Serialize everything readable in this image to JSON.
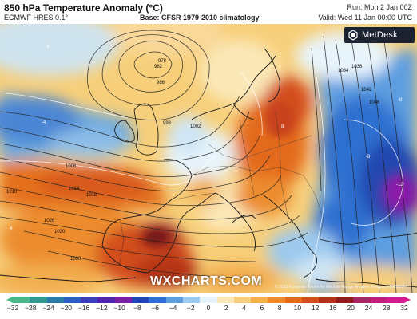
{
  "header": {
    "title": "850 hPa Temperature Anomaly (°C)",
    "model": "ECMWF HRES 0.1°",
    "base": "Base: CFSR 1979-2010 climatology",
    "run": "Run: Mon 2 Jan 00Z",
    "valid": "Valid: Wed 11 Jan 00:00 UTC"
  },
  "branding": {
    "metdesk": "MetDesk",
    "watermark": "WXCHARTS.COM",
    "credit": "© 2023 European Centre for Medium-Range Weather Forecasts (ECMWF)"
  },
  "isobar_labels": [
    "978",
    "982",
    "986",
    "998",
    "1002",
    "1006",
    "1010",
    "1014",
    "1018",
    "1026",
    "1030",
    "1034",
    "1038",
    "1042",
    "1046",
    "1030"
  ],
  "anomaly_labels": [
    "4",
    "8",
    "-4",
    "-8",
    "-12",
    "4",
    "-8"
  ],
  "colorbar": {
    "ticks": [
      "−32",
      "−28",
      "−24",
      "−20",
      "−16",
      "−12",
      "−10",
      "−8",
      "−6",
      "−4",
      "−2",
      "0",
      "2",
      "4",
      "6",
      "8",
      "10",
      "12",
      "16",
      "20",
      "24",
      "28",
      "32"
    ],
    "colors": [
      "#47b88a",
      "#2f9a8f",
      "#2a7ca8",
      "#2a5fc0",
      "#3a3fb8",
      "#5226a8",
      "#7a1fa8",
      "#2146b0",
      "#2f6fd0",
      "#5d9ee0",
      "#9cc9ee",
      "#e8f4fb",
      "#fbe8b8",
      "#f7cf7a",
      "#f2ae4f",
      "#ec8c2e",
      "#e36a1f",
      "#d34d1a",
      "#b33118",
      "#8e1f1f",
      "#a12a64",
      "#c21d7e",
      "#d21a8f"
    ]
  }
}
